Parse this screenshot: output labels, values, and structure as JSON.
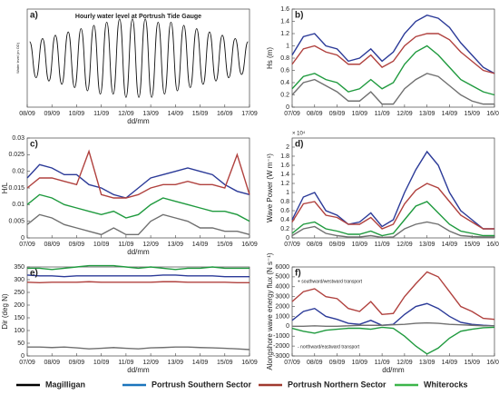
{
  "chart_data": [
    {
      "type": "line",
      "panel_label": "a)",
      "title": "Hourly water level at Portrush Tide Gauge",
      "ylabel": "Water level (m OD)",
      "xlabel": "dd/mm",
      "smooth": true,
      "x": [
        0.1,
        0.36,
        0.62,
        0.88,
        1.14,
        1.4,
        1.66,
        1.92,
        2.18,
        2.44,
        2.7,
        2.96,
        3.22,
        3.48,
        3.74,
        4.0,
        4.26,
        4.52,
        4.78,
        5.04,
        5.3,
        5.56,
        5.82,
        6.08,
        6.34,
        6.6,
        6.86,
        7.12,
        7.38,
        7.64,
        7.9,
        8.16,
        8.42,
        8.68,
        8.94
      ],
      "series": [
        {
          "color": "#111111",
          "values": [
            0.5,
            -0.6,
            0.6,
            -0.7,
            0.7,
            -0.8,
            0.8,
            -0.9,
            0.9,
            -1.0,
            1.0,
            -1.1,
            1.1,
            -1.1,
            1.2,
            -1.2,
            1.2,
            -1.2,
            1.2,
            -1.2,
            1.1,
            -1.1,
            1.1,
            -1.0,
            1.0,
            -0.9,
            0.9,
            -0.8,
            0.8,
            -0.7,
            0.7,
            -0.6,
            0.6,
            -0.5,
            0.5
          ]
        }
      ],
      "xlim": [
        0,
        9
      ],
      "ylim": [
        -1.5,
        1.5
      ],
      "xticks": [
        {
          "value": 0,
          "label": "08/09"
        },
        {
          "value": 1,
          "label": "09/09"
        },
        {
          "value": 2,
          "label": "10/09"
        },
        {
          "value": 3,
          "label": "11/09"
        },
        {
          "value": 4,
          "label": "12/09"
        },
        {
          "value": 5,
          "label": "13/09"
        },
        {
          "value": 6,
          "label": "14/09"
        },
        {
          "value": 7,
          "label": "15/09"
        },
        {
          "value": 8,
          "label": "16/09"
        },
        {
          "value": 9,
          "label": "17/09"
        }
      ],
      "yticks": []
    },
    {
      "type": "line",
      "panel_label": "b)",
      "ylabel": "Hs (m)",
      "x": [
        0,
        0.5,
        1,
        1.5,
        2,
        2.5,
        3,
        3.5,
        4,
        4.5,
        5,
        5.5,
        6,
        6.5,
        7,
        7.5,
        8,
        8.5,
        9
      ],
      "series": [
        {
          "color": "#2b3a98",
          "values": [
            0.85,
            1.15,
            1.2,
            1.0,
            0.95,
            0.75,
            0.8,
            0.95,
            0.75,
            0.9,
            1.2,
            1.4,
            1.5,
            1.45,
            1.3,
            1.05,
            0.85,
            0.65,
            0.55
          ]
        },
        {
          "color": "#b0413e",
          "values": [
            0.7,
            0.95,
            1.0,
            0.9,
            0.85,
            0.7,
            0.7,
            0.85,
            0.65,
            0.75,
            1.0,
            1.15,
            1.2,
            1.2,
            1.1,
            0.9,
            0.75,
            0.6,
            0.55
          ]
        },
        {
          "color": "#1f9a3e",
          "values": [
            0.3,
            0.5,
            0.55,
            0.45,
            0.4,
            0.25,
            0.3,
            0.45,
            0.3,
            0.4,
            0.7,
            0.9,
            1.0,
            0.85,
            0.65,
            0.45,
            0.35,
            0.25,
            0.2
          ]
        },
        {
          "color": "#707070",
          "values": [
            0.2,
            0.4,
            0.45,
            0.35,
            0.25,
            0.1,
            0.1,
            0.25,
            0.05,
            0.05,
            0.3,
            0.45,
            0.55,
            0.5,
            0.35,
            0.2,
            0.1,
            0.05,
            0.05
          ]
        }
      ],
      "xlim": [
        0,
        9
      ],
      "ylim": [
        0,
        1.6
      ],
      "xticks": [
        {
          "value": 0,
          "label": "07/09"
        },
        {
          "value": 1,
          "label": "08/09"
        },
        {
          "value": 2,
          "label": "09/09"
        },
        {
          "value": 3,
          "label": "10/09"
        },
        {
          "value": 4,
          "label": "11/09"
        },
        {
          "value": 5,
          "label": "12/09"
        },
        {
          "value": 6,
          "label": "13/09"
        },
        {
          "value": 7,
          "label": "14/09"
        },
        {
          "value": 8,
          "label": "15/09"
        },
        {
          "value": 9,
          "label": "16/09"
        }
      ],
      "yticks": [
        0,
        0.2,
        0.4,
        0.6,
        0.8,
        1,
        1.2,
        1.4,
        1.6
      ]
    },
    {
      "type": "line",
      "panel_label": "c)",
      "ylabel": "H/L",
      "xlabel": "dd/mm",
      "x": [
        0,
        0.5,
        1,
        1.5,
        2,
        2.5,
        3,
        3.5,
        4,
        4.5,
        5,
        5.5,
        6,
        6.5,
        7,
        7.5,
        8,
        8.5,
        9
      ],
      "series": [
        {
          "color": "#2b3a98",
          "values": [
            0.018,
            0.022,
            0.021,
            0.019,
            0.019,
            0.016,
            0.015,
            0.013,
            0.012,
            0.015,
            0.018,
            0.019,
            0.02,
            0.021,
            0.02,
            0.019,
            0.016,
            0.014,
            0.013
          ]
        },
        {
          "color": "#b0413e",
          "values": [
            0.015,
            0.018,
            0.018,
            0.017,
            0.016,
            0.026,
            0.013,
            0.012,
            0.012,
            0.013,
            0.015,
            0.016,
            0.016,
            0.017,
            0.016,
            0.016,
            0.015,
            0.025,
            0.013
          ]
        },
        {
          "color": "#1f9a3e",
          "values": [
            0.01,
            0.013,
            0.012,
            0.01,
            0.009,
            0.008,
            0.007,
            0.008,
            0.006,
            0.007,
            0.01,
            0.012,
            0.011,
            0.01,
            0.009,
            0.008,
            0.008,
            0.007,
            0.005
          ]
        },
        {
          "color": "#707070",
          "values": [
            0.004,
            0.007,
            0.006,
            0.004,
            0.003,
            0.002,
            0.001,
            0.003,
            0.001,
            0.001,
            0.005,
            0.007,
            0.006,
            0.005,
            0.003,
            0.003,
            0.002,
            0.002,
            0.001
          ]
        }
      ],
      "xlim": [
        0,
        9
      ],
      "ylim": [
        0,
        0.03
      ],
      "xticks": [
        {
          "value": 0,
          "label": "07/09"
        },
        {
          "value": 1,
          "label": "08/09"
        },
        {
          "value": 2,
          "label": "09/09"
        },
        {
          "value": 3,
          "label": "10/09"
        },
        {
          "value": 4,
          "label": "11/09"
        },
        {
          "value": 5,
          "label": "12/09"
        },
        {
          "value": 6,
          "label": "13/09"
        },
        {
          "value": 7,
          "label": "14/09"
        },
        {
          "value": 8,
          "label": "15/09"
        },
        {
          "value": 9,
          "label": "16/09"
        }
      ],
      "yticks": [
        0,
        0.005,
        0.01,
        0.015,
        0.02,
        0.025,
        0.03
      ]
    },
    {
      "type": "line",
      "panel_label": "d)",
      "ylabel": "Wave Power (W m⁻¹)",
      "axis_multiplier": "× 10⁴",
      "x": [
        0,
        0.5,
        1,
        1.5,
        2,
        2.5,
        3,
        3.5,
        4,
        4.5,
        5,
        5.5,
        6,
        6.5,
        7,
        7.5,
        8,
        8.5,
        9
      ],
      "series": [
        {
          "color": "#2b3a98",
          "values": [
            0.4,
            0.9,
            1.0,
            0.6,
            0.5,
            0.3,
            0.35,
            0.55,
            0.25,
            0.4,
            1.0,
            1.5,
            1.9,
            1.6,
            1.0,
            0.6,
            0.4,
            0.2,
            0.2
          ]
        },
        {
          "color": "#b0413e",
          "values": [
            0.35,
            0.75,
            0.8,
            0.5,
            0.45,
            0.3,
            0.3,
            0.45,
            0.2,
            0.3,
            0.75,
            1.05,
            1.2,
            1.1,
            0.8,
            0.5,
            0.35,
            0.2,
            0.2
          ]
        },
        {
          "color": "#1f9a3e",
          "values": [
            0.1,
            0.3,
            0.35,
            0.2,
            0.15,
            0.08,
            0.08,
            0.15,
            0.05,
            0.1,
            0.4,
            0.7,
            0.8,
            0.55,
            0.3,
            0.15,
            0.1,
            0.05,
            0.05
          ]
        },
        {
          "color": "#707070",
          "values": [
            0.05,
            0.2,
            0.25,
            0.1,
            0.05,
            0.02,
            0.02,
            0.05,
            0.01,
            0.02,
            0.2,
            0.3,
            0.35,
            0.3,
            0.15,
            0.05,
            0.03,
            0.02,
            0.02
          ]
        }
      ],
      "xlim": [
        0,
        9
      ],
      "ylim": [
        0,
        2.2
      ],
      "xticks": [
        {
          "value": 0,
          "label": "07/09"
        },
        {
          "value": 1,
          "label": "08/09"
        },
        {
          "value": 2,
          "label": "09/09"
        },
        {
          "value": 3,
          "label": "10/09"
        },
        {
          "value": 4,
          "label": "11/09"
        },
        {
          "value": 5,
          "label": "12/09"
        },
        {
          "value": 6,
          "label": "13/09"
        },
        {
          "value": 7,
          "label": "14/09"
        },
        {
          "value": 8,
          "label": "15/09"
        },
        {
          "value": 9,
          "label": "16/09"
        }
      ],
      "yticks": [
        0,
        0.2,
        0.4,
        0.6,
        0.8,
        1,
        1.2,
        1.4,
        1.6,
        1.8,
        2
      ]
    },
    {
      "type": "line",
      "panel_label": "e)",
      "ylabel": "Dir (deg N)",
      "xlabel": "dd/mm",
      "x": [
        0,
        0.5,
        1,
        1.5,
        2,
        2.5,
        3,
        3.5,
        4,
        4.5,
        5,
        5.5,
        6,
        6.5,
        7,
        7.5,
        8,
        8.5,
        9
      ],
      "series": [
        {
          "color": "#2b3a98",
          "values": [
            318,
            315,
            315,
            312,
            315,
            315,
            315,
            315,
            315,
            315,
            315,
            318,
            318,
            315,
            315,
            315,
            312,
            312,
            312
          ]
        },
        {
          "color": "#b0413e",
          "values": [
            290,
            288,
            290,
            290,
            290,
            292,
            290,
            290,
            290,
            290,
            290,
            292,
            292,
            290,
            290,
            290,
            290,
            288,
            288
          ]
        },
        {
          "color": "#1f9a3e",
          "values": [
            345,
            345,
            340,
            345,
            350,
            355,
            355,
            355,
            350,
            345,
            350,
            345,
            340,
            345,
            345,
            350,
            345,
            345,
            345
          ]
        },
        {
          "color": "#707070",
          "values": [
            35,
            35,
            33,
            35,
            32,
            28,
            30,
            33,
            30,
            28,
            32,
            33,
            35,
            35,
            33,
            32,
            30,
            28,
            25
          ]
        }
      ],
      "xlim": [
        0,
        9
      ],
      "ylim": [
        0,
        350
      ],
      "xticks": [
        {
          "value": 0,
          "label": "07/09"
        },
        {
          "value": 1,
          "label": "08/09"
        },
        {
          "value": 2,
          "label": "09/09"
        },
        {
          "value": 3,
          "label": "10/09"
        },
        {
          "value": 4,
          "label": "11/09"
        },
        {
          "value": 5,
          "label": "12/09"
        },
        {
          "value": 6,
          "label": "13/09"
        },
        {
          "value": 7,
          "label": "14/09"
        },
        {
          "value": 8,
          "label": "15/09"
        },
        {
          "value": 9,
          "label": "16/09"
        }
      ],
      "yticks": [
        0,
        50,
        100,
        150,
        200,
        250,
        300,
        350
      ]
    },
    {
      "type": "line",
      "panel_label": "f)",
      "ylabel": "Alongshore wave energy flux (N s⁻¹)",
      "xlabel": "dd/mm",
      "note_top": "+ southward/westward transport",
      "note_bottom": "- northward/eastward transport",
      "x": [
        0,
        0.5,
        1,
        1.5,
        2,
        2.5,
        3,
        3.5,
        4,
        4.5,
        5,
        5.5,
        6,
        6.5,
        7,
        7.5,
        8,
        8.5,
        9
      ],
      "series": [
        {
          "color": "#2b3a98",
          "values": [
            600,
            1500,
            1800,
            1000,
            700,
            300,
            200,
            600,
            100,
            200,
            1200,
            2000,
            2300,
            1800,
            1000,
            400,
            200,
            100,
            50
          ]
        },
        {
          "color": "#b0413e",
          "values": [
            2500,
            3500,
            3800,
            3000,
            2800,
            1800,
            1500,
            2500,
            1200,
            1300,
            3000,
            4300,
            5500,
            5000,
            3500,
            2000,
            1500,
            800,
            700
          ]
        },
        {
          "color": "#1f9a3e",
          "values": [
            -200,
            -500,
            -700,
            -400,
            -300,
            -200,
            -200,
            -300,
            -100,
            -200,
            -1000,
            -2000,
            -2800,
            -2200,
            -1200,
            -500,
            -300,
            -150,
            -100
          ]
        },
        {
          "color": "#707070",
          "values": [
            0,
            0,
            50,
            0,
            0,
            50,
            100,
            100,
            100,
            150,
            200,
            300,
            350,
            300,
            200,
            150,
            100,
            50,
            50
          ]
        }
      ],
      "xlim": [
        0,
        9
      ],
      "ylim": [
        -3000,
        6000
      ],
      "xticks": [
        {
          "value": 0,
          "label": "07/09"
        },
        {
          "value": 1,
          "label": "08/09"
        },
        {
          "value": 2,
          "label": "09/09"
        },
        {
          "value": 3,
          "label": "10/09"
        },
        {
          "value": 4,
          "label": "11/09"
        },
        {
          "value": 5,
          "label": "12/09"
        },
        {
          "value": 6,
          "label": "13/09"
        },
        {
          "value": 7,
          "label": "14/09"
        },
        {
          "value": 8,
          "label": "15/09"
        },
        {
          "value": 9,
          "label": "16/09"
        }
      ],
      "yticks": [
        -3000,
        -2000,
        -1000,
        0,
        1000,
        2000,
        3000,
        4000,
        5000,
        6000
      ]
    }
  ],
  "legend": [
    {
      "name": "Magilligan",
      "color": "#000000"
    },
    {
      "name": "Portrush Southern Sector",
      "color": "#1b75bc"
    },
    {
      "name": "Portrush Northern Sector",
      "color": "#a0392f"
    },
    {
      "name": "Whiterocks",
      "color": "#3cb54a"
    }
  ]
}
